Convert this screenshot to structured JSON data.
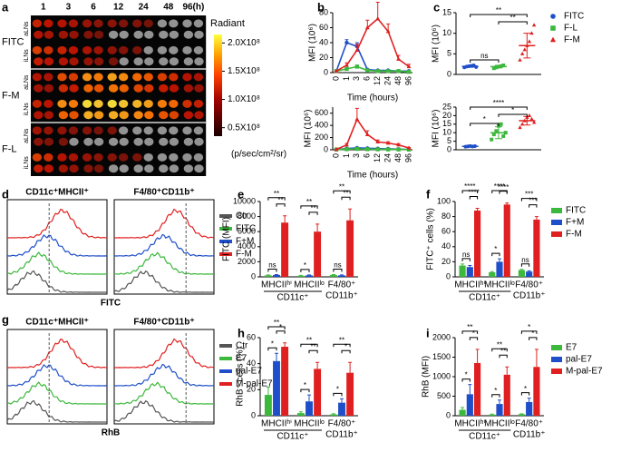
{
  "panel_a": {
    "panel": "a",
    "columns": [
      "1",
      "3",
      "6",
      "12",
      "24",
      "48",
      "96(h)"
    ],
    "groups": [
      "FITC",
      "F-M",
      "F-L"
    ],
    "rows": [
      "aLNs",
      "iLNs"
    ],
    "colorbar": {
      "label": "Radiant",
      "unit": "(p/sec/cm²/sr)",
      "lim": [
        35000000,
        215000000
      ],
      "ticks": [
        {
          "value": 200000000,
          "label": "2.0X10⁸"
        },
        {
          "value": 150000000,
          "label": "1.5X10⁸"
        },
        {
          "value": 100000000,
          "label": "1.0X10⁸"
        },
        {
          "value": 50000000,
          "label": "0.5X10⁸"
        }
      ]
    }
  },
  "panel_d": {
    "panel": "d",
    "titles": [
      "CD11c⁺MHCII⁺",
      "F4/80⁺CD11b⁺"
    ],
    "xlabel": "FITC",
    "series": [
      {
        "name": "Ctr",
        "color": "#555555"
      },
      {
        "name": "FITC",
        "color": "#3cb83c"
      },
      {
        "name": "F+M",
        "color": "#1f4fc8"
      },
      {
        "name": "F-M",
        "color": "#e02020"
      }
    ]
  },
  "panel_g": {
    "panel": "g",
    "titles": [
      "CD11c⁺MHCII⁺",
      "F4/80⁺CD11b⁺"
    ],
    "xlabel": "RhB",
    "series": [
      {
        "name": "Ctr",
        "color": "#555555"
      },
      {
        "name": "E7",
        "color": "#3cb83c"
      },
      {
        "name": "pal-E7",
        "color": "#1f4fc8"
      },
      {
        "name": "M-pal-E7",
        "color": "#e02020"
      }
    ]
  },
  "chart_data": [
    {
      "type": "line",
      "panel": "b",
      "ylabel": "MFI (10⁶)",
      "xlabel": "Time (hours)",
      "categories": [
        "0",
        "1",
        "3",
        "6",
        "12",
        "24",
        "48",
        "96"
      ],
      "ylim": [
        0,
        80
      ],
      "yticks": [
        0,
        20,
        40,
        60,
        80
      ],
      "series": [
        {
          "color": "#1f4fc8",
          "marker": "circle",
          "values": [
            2,
            40,
            35,
            4,
            3,
            3,
            2,
            2
          ],
          "errors": [
            0,
            4,
            5,
            1,
            1,
            1,
            0,
            0
          ]
        },
        {
          "color": "#3cb83c",
          "marker": "square",
          "values": [
            2,
            5,
            8,
            3,
            2,
            2,
            2,
            1
          ],
          "errors": [
            0,
            1,
            2,
            1,
            0,
            0,
            0,
            0
          ]
        },
        {
          "color": "#e02020",
          "marker": "triangle",
          "values": [
            2,
            10,
            30,
            60,
            72,
            55,
            18,
            8
          ],
          "errors": [
            0,
            3,
            8,
            10,
            22,
            10,
            5,
            3
          ]
        }
      ]
    },
    {
      "type": "line",
      "ylabel": "MFI (10⁶)",
      "xlabel": "Time (hours)",
      "categories": [
        "0",
        "1",
        "3",
        "6",
        "12",
        "24",
        "48",
        "96"
      ],
      "ylim": [
        0,
        700
      ],
      "yticks": [
        0,
        200,
        400,
        600
      ],
      "series": [
        {
          "color": "#1f4fc8",
          "marker": "circle",
          "values": [
            5,
            20,
            30,
            25,
            20,
            15,
            10,
            5
          ],
          "errors": [
            0,
            5,
            8,
            6,
            5,
            4,
            3,
            2
          ]
        },
        {
          "color": "#3cb83c",
          "marker": "square",
          "values": [
            5,
            10,
            15,
            10,
            8,
            6,
            5,
            3
          ],
          "errors": [
            0,
            3,
            4,
            3,
            2,
            2,
            1,
            1
          ]
        },
        {
          "color": "#e02020",
          "marker": "triangle",
          "values": [
            5,
            80,
            500,
            250,
            130,
            110,
            80,
            30
          ],
          "errors": [
            0,
            20,
            180,
            60,
            30,
            20,
            20,
            10
          ]
        }
      ]
    },
    {
      "type": "scatter",
      "panel": "c",
      "ylabel": "MFI (10⁶)",
      "ylim": [
        0,
        15
      ],
      "yticks": [
        0,
        5,
        10,
        15
      ],
      "legend": true,
      "significance": [
        "ns",
        "**",
        "**"
      ],
      "series": [
        {
          "name": "FITC",
          "color": "#1f4fc8",
          "marker": "circle",
          "values": [
            1.7,
            1.9,
            2,
            2.1,
            2.2,
            1.8
          ],
          "mean": 1.95,
          "sd": 0.2
        },
        {
          "name": "F-L",
          "color": "#3cb83c",
          "marker": "square",
          "values": [
            1.5,
            1.7,
            1.9,
            2,
            2.2
          ],
          "mean": 1.9,
          "sd": 0.3
        },
        {
          "name": "F-M",
          "color": "#e02020",
          "marker": "triangle",
          "values": [
            3.5,
            5,
            6,
            7,
            8,
            10,
            12
          ],
          "mean": 7,
          "sd": 3
        }
      ]
    },
    {
      "type": "scatter",
      "ylabel": "MFI (10⁶)",
      "ylim": [
        0,
        25
      ],
      "yticks": [
        0,
        5,
        10,
        15,
        20,
        25
      ],
      "significance": [
        "*",
        "*",
        "****"
      ],
      "series": [
        {
          "color": "#1f4fc8",
          "marker": "circle",
          "values": [
            1.8,
            2,
            2.2,
            1.9,
            2.1
          ],
          "mean": 2,
          "sd": 0.2
        },
        {
          "color": "#3cb83c",
          "marker": "square",
          "values": [
            6,
            9,
            11,
            14,
            15,
            8,
            10
          ],
          "mean": 10,
          "sd": 3.5
        },
        {
          "color": "#e02020",
          "marker": "triangle",
          "values": [
            13,
            15,
            17,
            19,
            20,
            18,
            16
          ],
          "mean": 17,
          "sd": 2.5
        }
      ]
    },
    {
      "type": "bar",
      "panel": "e",
      "ylabel": "FITC (MFI)",
      "categories": [
        "MHCIIʰⁱ",
        "MHCIIˡᵒ",
        "F4/80⁺"
      ],
      "group_labels": [
        "CD11c⁺",
        "CD11b⁺"
      ],
      "ylim": [
        0,
        10000
      ],
      "yticks": [
        0,
        2000,
        4000,
        6000,
        8000,
        10000
      ],
      "significance": [
        "ns",
        "**",
        "**",
        "*",
        "**",
        "**",
        "ns",
        "**",
        "**"
      ],
      "series": [
        {
          "color": "#3cb83c",
          "values": [
            200,
            150,
            250
          ],
          "errors": [
            50,
            50,
            50
          ]
        },
        {
          "color": "#1f4fc8",
          "values": [
            250,
            200,
            200
          ],
          "errors": [
            50,
            50,
            50
          ]
        },
        {
          "color": "#e02020",
          "values": [
            7200,
            6000,
            7500
          ],
          "errors": [
            900,
            1000,
            1500
          ]
        }
      ]
    },
    {
      "type": "bar",
      "panel": "f",
      "ylabel": "FITC⁺ cells (%)",
      "categories": [
        "MHCIIʰⁱ",
        "MHCIIˡᵒ",
        "F4/80⁺"
      ],
      "group_labels": [
        "CD11c⁺",
        "CD11b⁺"
      ],
      "ylim": [
        0,
        100
      ],
      "yticks": [
        0,
        20,
        40,
        60,
        80,
        100
      ],
      "legend": true,
      "significance": [
        "ns",
        "****",
        "****",
        "*",
        "****",
        "****",
        "ns",
        "***",
        "***"
      ],
      "series": [
        {
          "name": "FITC",
          "color": "#3cb83c",
          "values": [
            15,
            6,
            9
          ],
          "errors": [
            2,
            1,
            1
          ]
        },
        {
          "name": "F+M",
          "color": "#1f4fc8",
          "values": [
            13,
            20,
            7
          ],
          "errors": [
            2,
            4,
            1
          ]
        },
        {
          "name": "F-M",
          "color": "#e02020",
          "values": [
            88,
            96,
            76
          ],
          "errors": [
            3,
            2,
            4
          ]
        }
      ]
    },
    {
      "type": "bar",
      "panel": "h",
      "ylabel": "RhB⁺ cells (%)",
      "categories": [
        "MHCIIʰⁱ",
        "MHCIIˡᵒ",
        "F4/80⁺"
      ],
      "group_labels": [
        "CD11c⁺",
        "CD11b⁺"
      ],
      "ylim": [
        0,
        60
      ],
      "yticks": [
        0,
        20,
        40,
        60
      ],
      "significance": [
        "*",
        "*",
        "**",
        "*",
        "**",
        "**",
        "*",
        "*",
        "**"
      ],
      "series": [
        {
          "color": "#3cb83c",
          "values": [
            16,
            2,
            1
          ],
          "errors": [
            6,
            1,
            0.5
          ]
        },
        {
          "color": "#1f4fc8",
          "values": [
            42,
            11,
            10
          ],
          "errors": [
            6,
            5,
            3
          ]
        },
        {
          "color": "#e02020",
          "values": [
            53,
            36,
            33
          ],
          "errors": [
            3,
            5,
            8
          ]
        }
      ]
    },
    {
      "type": "bar",
      "panel": "i",
      "ylabel": "RhB (MFI)",
      "categories": [
        "MHCIIʰⁱ",
        "MHCIIˡᵒ",
        "F4/80⁺"
      ],
      "group_labels": [
        "CD11c⁺",
        "CD11b⁺"
      ],
      "ylim": [
        0,
        2000
      ],
      "yticks": [
        0,
        500,
        1000,
        1500,
        2000
      ],
      "legend": true,
      "significance": [
        "*",
        "*",
        "**",
        "*",
        "**",
        "**",
        "*",
        "*",
        "*"
      ],
      "series": [
        {
          "name": "E7",
          "color": "#3cb83c",
          "values": [
            150,
            30,
            40
          ],
          "errors": [
            60,
            10,
            10
          ]
        },
        {
          "name": "pal-E7",
          "color": "#1f4fc8",
          "values": [
            550,
            300,
            350
          ],
          "errors": [
            250,
            100,
            100
          ]
        },
        {
          "name": "M-pal-E7",
          "color": "#e02020",
          "values": [
            1350,
            1050,
            1250
          ],
          "errors": [
            350,
            200,
            450
          ]
        }
      ]
    }
  ]
}
